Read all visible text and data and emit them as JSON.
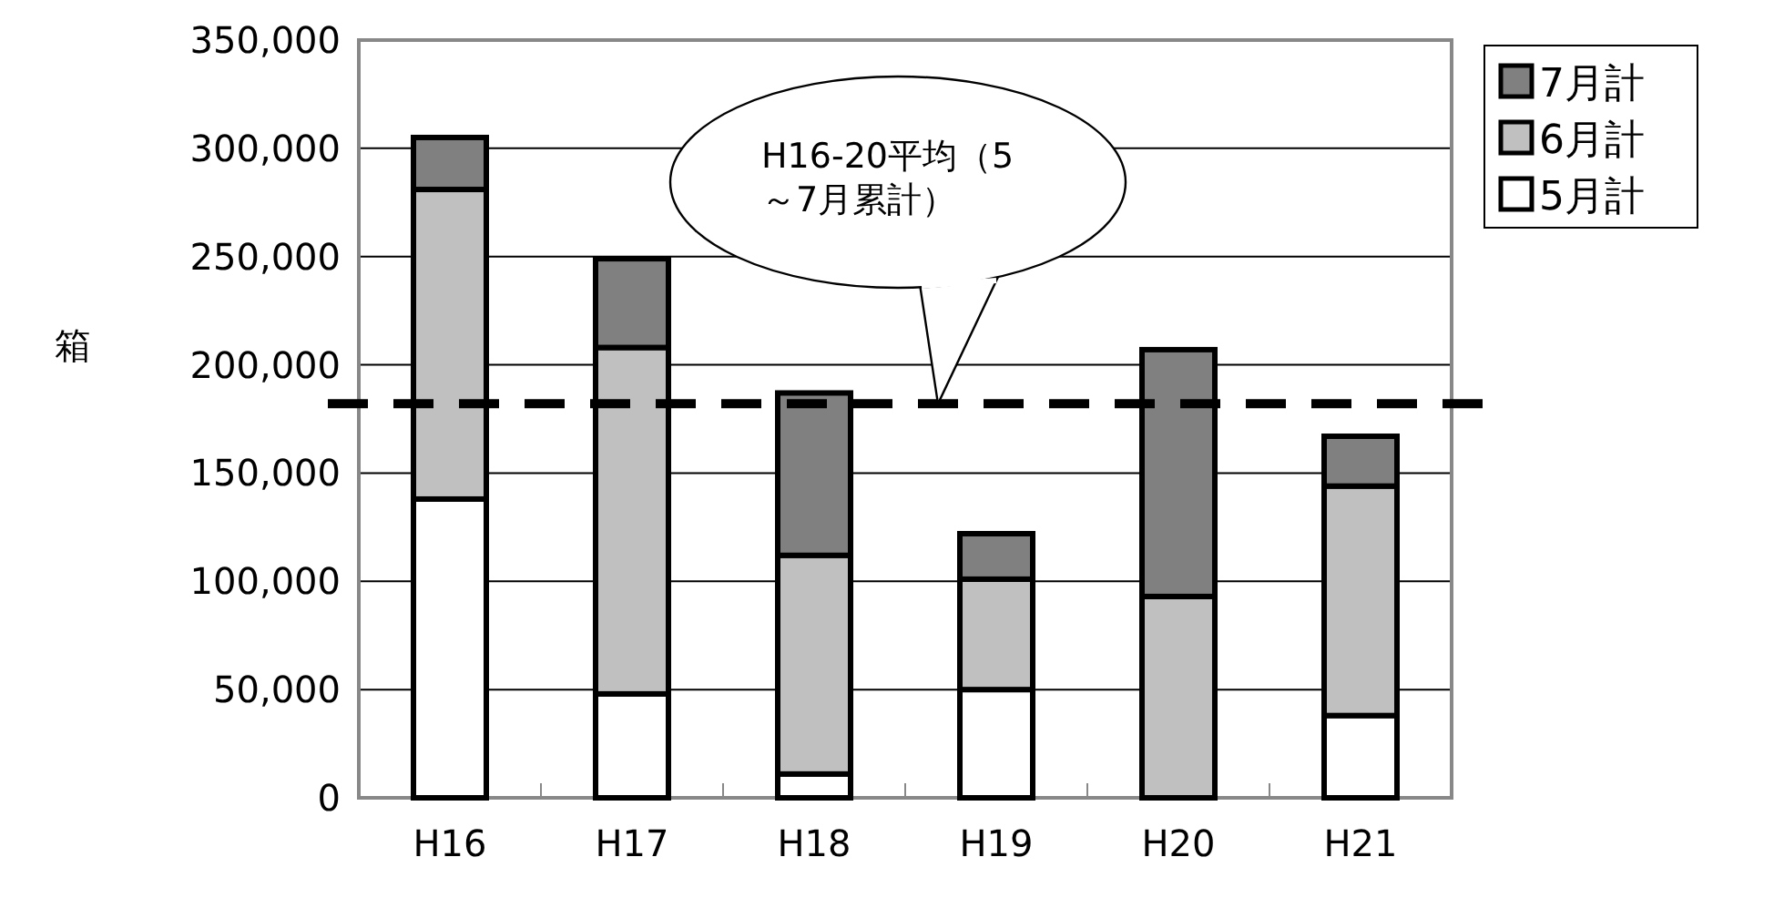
{
  "chart_data": {
    "type": "bar",
    "stacked": true,
    "ylabel": "箱",
    "categories": [
      "H16",
      "H17",
      "H18",
      "H19",
      "H20",
      "H21"
    ],
    "series": [
      {
        "name": "5月計",
        "color": "#ffffff",
        "values": [
          138000,
          48000,
          11000,
          50000,
          null,
          38000
        ]
      },
      {
        "name": "6月計",
        "color": "#c0c0c0",
        "values": [
          143000,
          160000,
          101000,
          51000,
          93000,
          106000
        ]
      },
      {
        "name": "7月計",
        "color": "#808080",
        "values": [
          24000,
          41000,
          75000,
          21000,
          114000,
          23000
        ]
      }
    ],
    "ylim": [
      0,
      350000
    ],
    "yticks": [
      {
        "value": 0,
        "label": "0"
      },
      {
        "value": 50000,
        "label": "50,000"
      },
      {
        "value": 100000,
        "label": "100,000"
      },
      {
        "value": 150000,
        "label": "150,000"
      },
      {
        "value": 200000,
        "label": "200,000"
      },
      {
        "value": 250000,
        "label": "250,000"
      },
      {
        "value": 300000,
        "label": "300,000"
      },
      {
        "value": 350000,
        "label": "350,000"
      }
    ],
    "grid": "y",
    "legend": "right",
    "ref_lines": [
      {
        "axis": "y",
        "value": 182000,
        "color": "#000000",
        "line_style": "dashed"
      }
    ],
    "annotations": [
      "H16-20平均（5～7月累計）"
    ]
  }
}
